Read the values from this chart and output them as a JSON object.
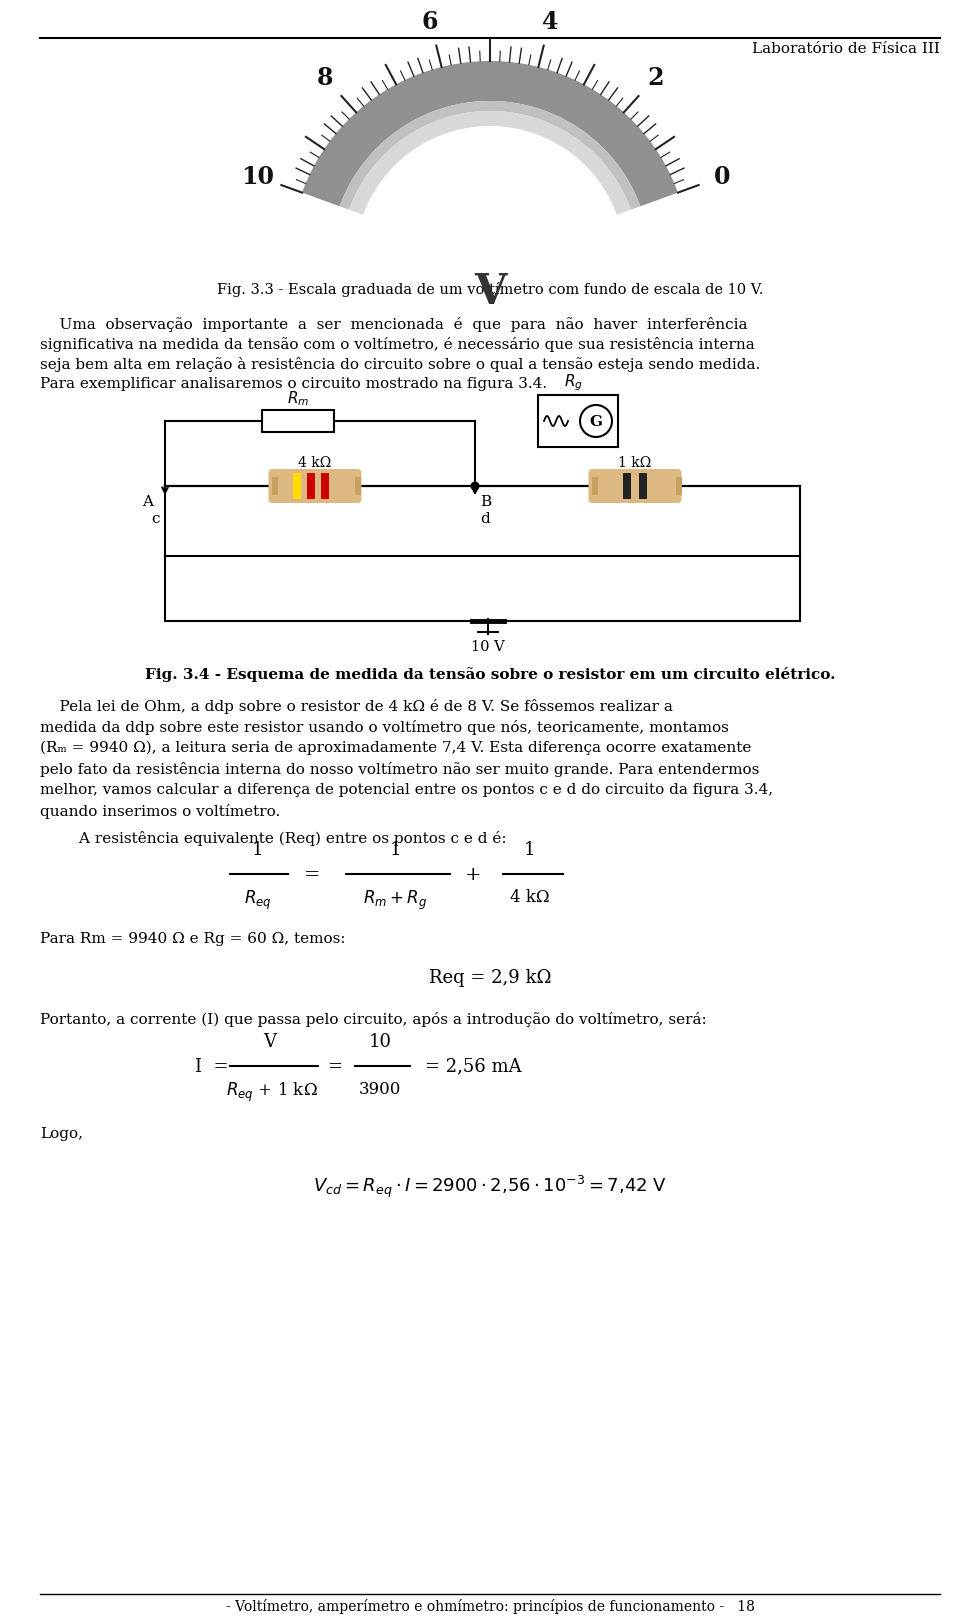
{
  "header_text": "Laboratório de Física III",
  "fig33_caption": "Fig. 3.3 - Escala graduada de um voltímetro com fundo de escala de 10 V.",
  "para1_lines": [
    "    Uma  observação  importante  a  ser  mencionada  é  que  para  não  haver  interferência",
    "significativa na medida da tensão com o voltímetro, é necessário que sua resistência interna",
    "seja bem alta em relação à resistência do circuito sobre o qual a tensão esteja sendo medida.",
    "Para exemplificar analisaremos o circuito mostrado na figura 3.4."
  ],
  "fig34_caption": "Fig. 3.4 - Esquema de medida da tensão sobre o resistor em um circuito elétrico.",
  "para2_lines": [
    "    Pela lei de Ohm, a ddp sobre o resistor de 4 kΩ é de 8 V. Se fôssemos realizar a",
    "medida da ddp sobre este resistor usando o voltímetro que nós, teoricamente, montamos",
    "(R\\u2098 = 9940 Ω), a leitura seria de aproximadamente 7,4 V. Esta diferença ocorre exatamente",
    "pelo fato da resistência interna do nosso voltímetro não ser muito grande. Para entendermos",
    "melhor, vamos calcular a diferença de potencial entre os pontos c e d do circuito da figura 3.4,",
    "quando inserimos o voltímetro."
  ],
  "para3": "        A resistência equivalente (Req) entre os pontos c e d é:",
  "para4": "Para Rm = 9940 Ω e Rg = 60 Ω, temos:",
  "eq2": "Req = 2,9 kΩ",
  "para5": "Portanto, a corrente (I) que passa pelo circuito, após a introdução do voltímetro, será:",
  "para6": "Logo,",
  "footer": "- Voltímetro, amperímetro e ohmímetro: princípios de funcionamento -   18",
  "bg_color": "#ffffff",
  "scale_labels": [
    "0",
    "2",
    "4",
    "6",
    "8",
    "10"
  ],
  "scale_values": [
    0,
    2,
    4,
    6,
    8,
    10
  ]
}
